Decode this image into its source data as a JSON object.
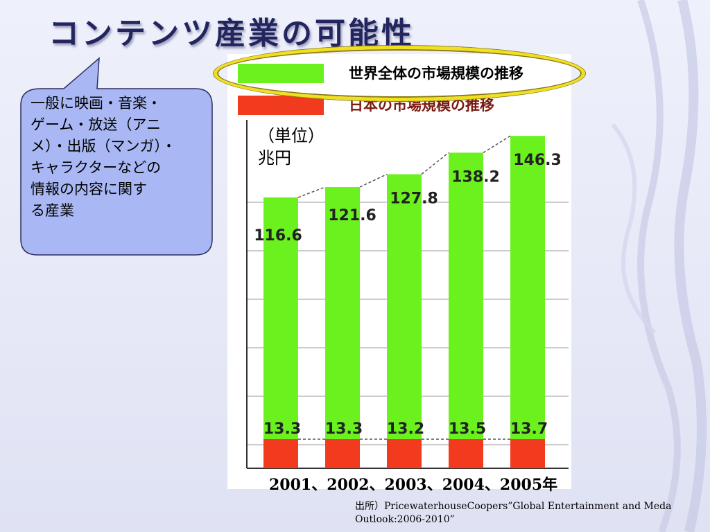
{
  "title": "コンテンツ産業の可能性",
  "callout": {
    "lines": [
      "一般に映画・音楽・",
      "ゲーム・放送（アニ",
      "メ）・出版（マンガ）・",
      "キャラクターなどの",
      "情報の内容に関す",
      "る産業"
    ]
  },
  "unit": {
    "line1": "（単位）",
    "line2": "兆円"
  },
  "year_label": "2001、2002、2003、2004、2005年",
  "source": "出所）PricewaterhouseCoopers”Global Entertainment and Meda Outlook:2006-2010”",
  "colors": {
    "world": "#6bf21e",
    "japan": "#f23a1e",
    "highlight": "#f0e020",
    "title": "#22255e"
  },
  "chart_data": {
    "type": "bar",
    "stacked": true,
    "categories": [
      "2001",
      "2002",
      "2003",
      "2004",
      "2005"
    ],
    "series": [
      {
        "name": "日本の市場規模の推移",
        "values": [
          13.3,
          13.3,
          13.2,
          13.5,
          13.7
        ]
      },
      {
        "name": "世界全体の市場規模の推移",
        "values": [
          116.6,
          121.6,
          127.8,
          138.2,
          146.3
        ]
      }
    ],
    "grid": true,
    "legend": "top"
  }
}
